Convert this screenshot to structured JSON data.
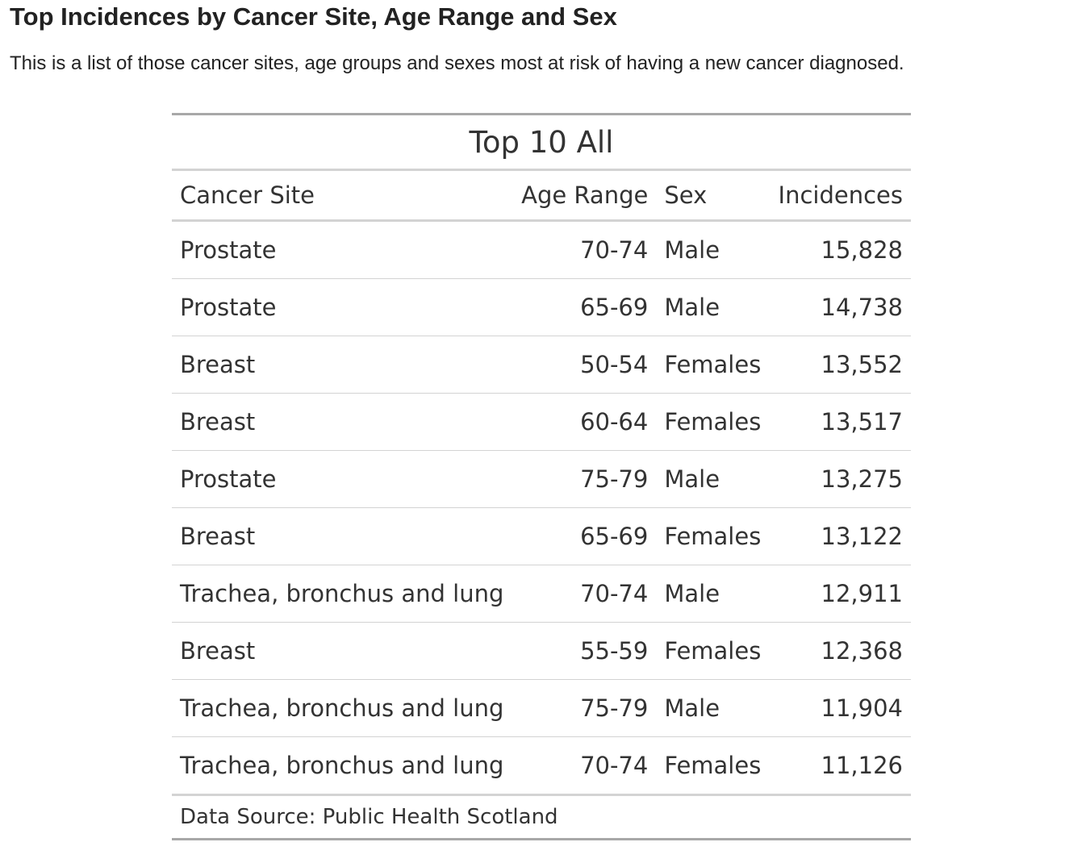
{
  "page": {
    "heading": "Top Incidences by Cancer Site, Age Range and Sex",
    "intro": "This is a list of those cancer sites, age groups and sexes most at risk of having a new cancer diagnosed."
  },
  "table": {
    "title": "Top 10 All",
    "columns": {
      "site": "Cancer Site",
      "age": "Age Range",
      "sex": "Sex",
      "incidences": "Incidences"
    },
    "rows": [
      {
        "site": "Prostate",
        "age": "70-74",
        "sex": "Male",
        "incidences": "15,828"
      },
      {
        "site": "Prostate",
        "age": "65-69",
        "sex": "Male",
        "incidences": "14,738"
      },
      {
        "site": "Breast",
        "age": "50-54",
        "sex": "Females",
        "incidences": "13,552"
      },
      {
        "site": "Breast",
        "age": "60-64",
        "sex": "Females",
        "incidences": "13,517"
      },
      {
        "site": "Prostate",
        "age": "75-79",
        "sex": "Male",
        "incidences": "13,275"
      },
      {
        "site": "Breast",
        "age": "65-69",
        "sex": "Females",
        "incidences": "13,122"
      },
      {
        "site": "Trachea, bronchus and lung",
        "age": "70-74",
        "sex": "Male",
        "incidences": "12,911"
      },
      {
        "site": "Breast",
        "age": "55-59",
        "sex": "Females",
        "incidences": "12,368"
      },
      {
        "site": "Trachea, bronchus and lung",
        "age": "75-79",
        "sex": "Male",
        "incidences": "11,904"
      },
      {
        "site": "Trachea, bronchus and lung",
        "age": "70-74",
        "sex": "Females",
        "incidences": "11,126"
      }
    ],
    "source_note": "Data Source: Public Health Scotland"
  },
  "colors": {
    "text": "#333333",
    "heading_text": "#222222",
    "rule_heavy": "#a8a8a8",
    "rule_light": "#d3d3d3",
    "background": "#ffffff"
  }
}
